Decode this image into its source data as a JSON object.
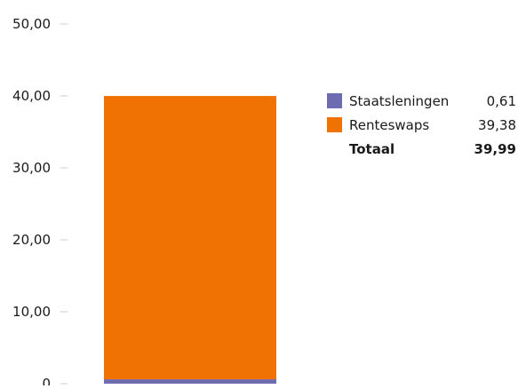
{
  "chart_data": {
    "type": "bar",
    "stacked": true,
    "categories": [
      ""
    ],
    "series": [
      {
        "name": "Staatsleningen",
        "values": [
          0.61
        ],
        "color": "#6f6bb0"
      },
      {
        "name": "Renteswaps",
        "values": [
          39.38
        ],
        "color": "#ef7203"
      }
    ],
    "ylim": [
      0,
      50
    ],
    "yticks": [
      "0",
      "10,00",
      "20,00",
      "30,00",
      "40,00",
      "50,00"
    ],
    "legend": {
      "placement": "right",
      "items": [
        {
          "label": "Staatsleningen",
          "value": "0,61",
          "color": "#6f6bb0"
        },
        {
          "label": "Renteswaps",
          "value": "39,38",
          "color": "#ef7203"
        }
      ],
      "total_label": "Totaal",
      "total_value": "39,99"
    },
    "grid": false
  }
}
